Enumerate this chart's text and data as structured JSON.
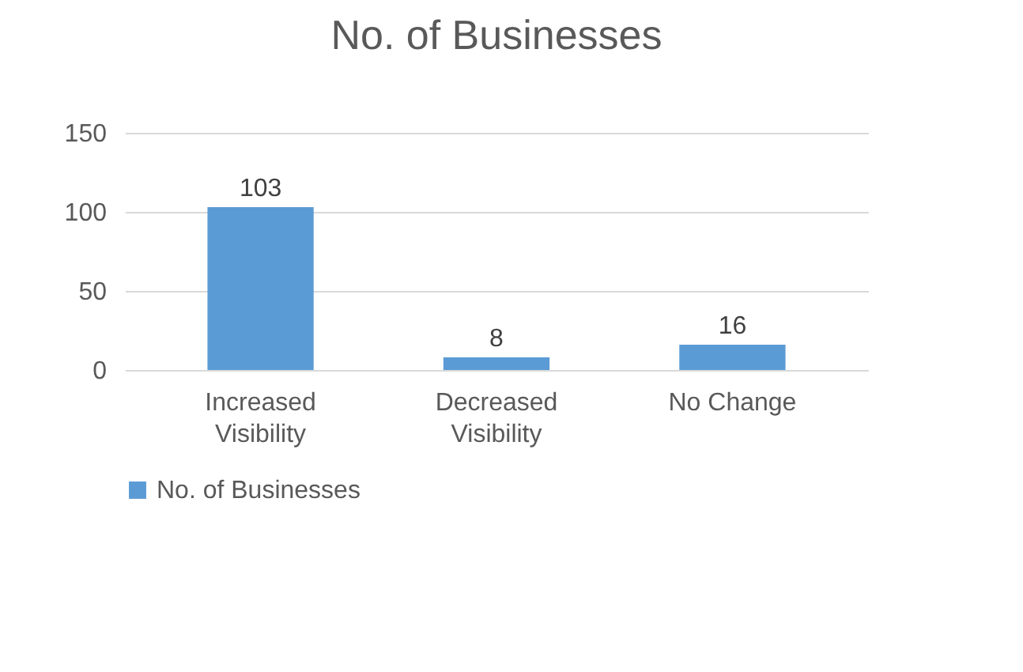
{
  "chart_data": {
    "type": "bar",
    "title": "No. of Businesses",
    "categories": [
      "Increased Visibility",
      "Decreased Visibility",
      "No Change"
    ],
    "series": [
      {
        "name": "No. of Businesses",
        "color": "#5b9bd5",
        "values": [
          103,
          8,
          16
        ]
      }
    ],
    "ylim": [
      0,
      150
    ],
    "yticks": [
      0,
      50,
      100,
      150
    ],
    "grid": "y",
    "legend": "bottom",
    "data_labels": true
  }
}
